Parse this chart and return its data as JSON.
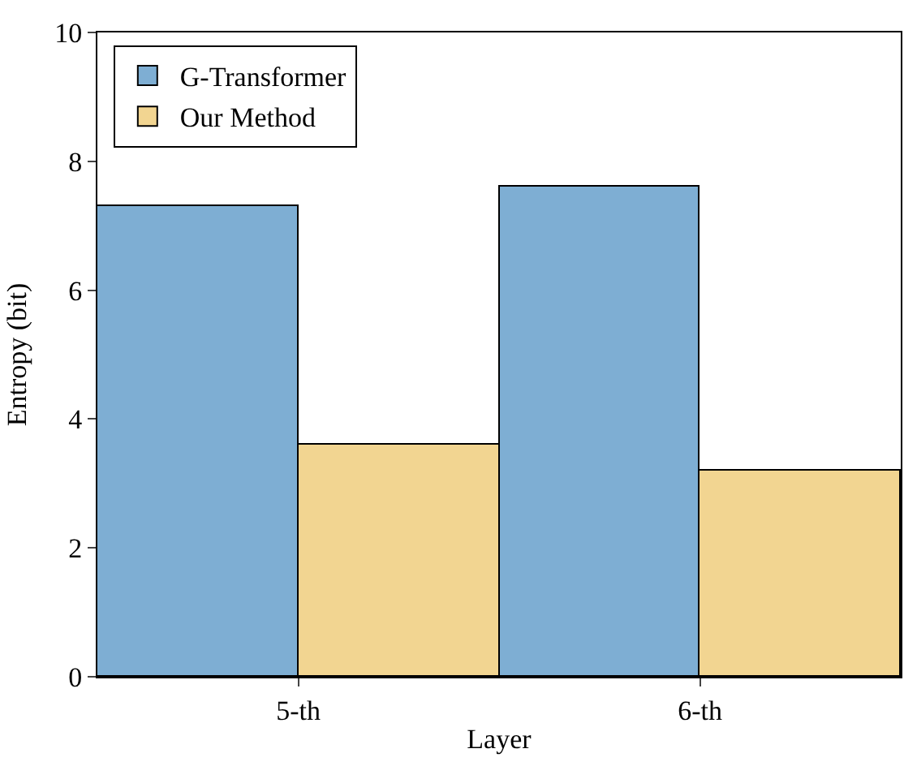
{
  "chart_data": {
    "type": "bar",
    "xlabel": "Layer",
    "ylabel": "Entropy (bit)",
    "categories": [
      "5-th",
      "6-th"
    ],
    "series": [
      {
        "name": "G-Transformer",
        "color": "#7eaed3",
        "values": [
          7.3,
          7.6
        ]
      },
      {
        "name": "Our Method",
        "color": "#f2d591",
        "values": [
          3.6,
          3.2
        ]
      }
    ],
    "ylim": [
      0,
      10
    ],
    "yticks": [
      0,
      2,
      4,
      6,
      8,
      10
    ],
    "grid": false,
    "legend": "top left"
  }
}
